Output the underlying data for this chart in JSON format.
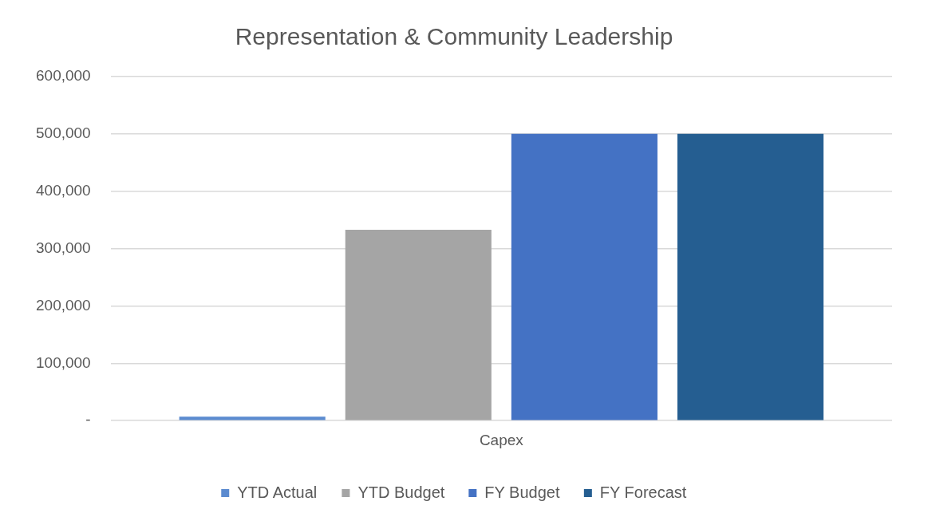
{
  "chart_data": {
    "type": "bar",
    "title": "Representation & Community Leadership",
    "categories": [
      "Capex"
    ],
    "series": [
      {
        "name": "YTD Actual",
        "color": "#5b8bd0",
        "values": [
          7000
        ]
      },
      {
        "name": "YTD Budget",
        "color": "#a5a5a5",
        "values": [
          333000
        ]
      },
      {
        "name": "FY Budget",
        "color": "#4472c4",
        "values": [
          500000
        ]
      },
      {
        "name": "FY Forecast",
        "color": "#255e91",
        "values": [
          500000
        ]
      }
    ],
    "ylim": [
      0,
      600000
    ],
    "yticks": [
      {
        "value": 0,
        "label": "-"
      },
      {
        "value": 100000,
        "label": "100,000"
      },
      {
        "value": 200000,
        "label": "200,000"
      },
      {
        "value": 300000,
        "label": "300,000"
      },
      {
        "value": 400000,
        "label": "400,000"
      },
      {
        "value": 500000,
        "label": "500,000"
      },
      {
        "value": 600000,
        "label": "600,000"
      }
    ],
    "grid": "y",
    "legend": "bottom"
  }
}
